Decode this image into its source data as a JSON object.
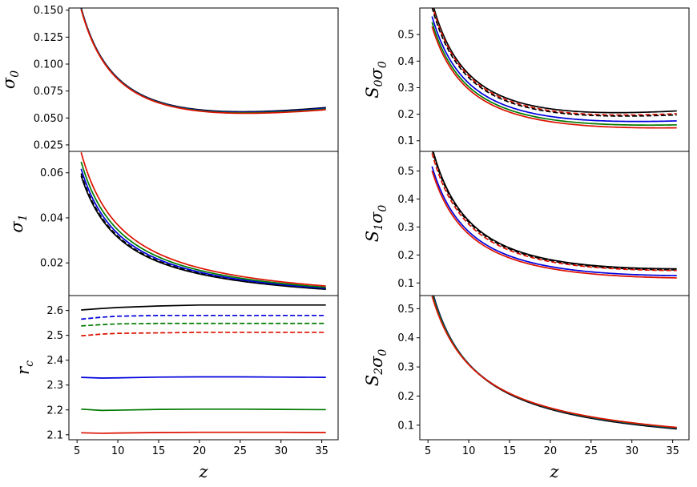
{
  "chart_data": [
    {
      "id": "sigma0",
      "type": "line",
      "ylabel": "σ0",
      "ylabel_main": "σ",
      "ylabel_sub": "0",
      "xlim": [
        4.0,
        37.0
      ],
      "ylim": [
        0.019,
        0.152
      ],
      "yticks": [
        0.025,
        0.05,
        0.075,
        0.1,
        0.125,
        0.15
      ],
      "ytick_labels": [
        "0.025",
        "0.050",
        "0.075",
        "0.100",
        "0.125",
        "0.150"
      ],
      "series": [
        {
          "name": "black",
          "color": "#000000",
          "dash": "solid",
          "a": 0.147,
          "e": 5.7,
          "p": 1.05,
          "b": 0.00128
        },
        {
          "name": "blue",
          "color": "#0000dd",
          "dash": "solid",
          "a": 0.1465,
          "e": 5.7,
          "p": 1.05,
          "b": 0.00126
        },
        {
          "name": "green",
          "color": "#007a00",
          "dash": "solid",
          "a": 0.146,
          "e": 5.7,
          "p": 1.05,
          "b": 0.00124
        },
        {
          "name": "red",
          "color": "#dd1100",
          "dash": "solid",
          "a": 0.1455,
          "e": 5.7,
          "p": 1.05,
          "b": 0.00122
        }
      ]
    },
    {
      "id": "sigma1",
      "type": "line",
      "ylabel": "σ1",
      "ylabel_main": "σ",
      "ylabel_sub": "1",
      "xlim": [
        4.0,
        37.0
      ],
      "ylim": [
        0.0055,
        0.0695
      ],
      "yticks": [
        0.02,
        0.04,
        0.06
      ],
      "ytick_labels": [
        "0.02",
        "0.04",
        "0.06"
      ],
      "series": [
        {
          "name": "black-dashed",
          "color": "#000000",
          "dash": "dashed",
          "a": 0.0575,
          "e": 5.7,
          "p": 1.05,
          "b": 0.0
        },
        {
          "name": "black",
          "color": "#000000",
          "dash": "solid",
          "a": 0.0565,
          "e": 5.7,
          "p": 1.05,
          "b": 0.0
        },
        {
          "name": "blue",
          "color": "#0000dd",
          "dash": "solid",
          "a": 0.0595,
          "e": 5.7,
          "p": 1.05,
          "b": 0.0
        },
        {
          "name": "green",
          "color": "#007a00",
          "dash": "solid",
          "a": 0.0625,
          "e": 5.7,
          "p": 1.05,
          "b": 0.0
        },
        {
          "name": "red",
          "color": "#dd1100",
          "dash": "solid",
          "a": 0.0665,
          "e": 5.7,
          "p": 1.05,
          "b": 0.0
        }
      ]
    },
    {
      "id": "rc",
      "type": "line",
      "ylabel": "rc",
      "ylabel_main": "r",
      "ylabel_sub": "c",
      "xlabel": "z",
      "xlim": [
        4.0,
        37.0
      ],
      "xticks": [
        5,
        10,
        15,
        20,
        25,
        30,
        35
      ],
      "xtick_labels": [
        "5",
        "10",
        "15",
        "20",
        "25",
        "30",
        "35"
      ],
      "ylim": [
        2.08,
        2.66
      ],
      "yticks": [
        2.1,
        2.2,
        2.3,
        2.4,
        2.5,
        2.6
      ],
      "ytick_labels": [
        "2.1",
        "2.2",
        "2.3",
        "2.4",
        "2.5",
        "2.6"
      ],
      "series": [
        {
          "name": "black",
          "color": "#000000",
          "dash": "solid",
          "x": [
            5.5,
            8,
            10,
            15,
            20,
            25,
            30,
            35.5
          ],
          "y": [
            2.602,
            2.608,
            2.612,
            2.618,
            2.622,
            2.622,
            2.622,
            2.622
          ]
        },
        {
          "name": "blue-dashed",
          "color": "#0000dd",
          "dash": "dashed",
          "x": [
            5.5,
            8,
            10,
            15,
            20,
            25,
            30,
            35.5
          ],
          "y": [
            2.565,
            2.573,
            2.577,
            2.58,
            2.58,
            2.58,
            2.58,
            2.58
          ]
        },
        {
          "name": "green-dashed",
          "color": "#007a00",
          "dash": "dashed",
          "x": [
            5.5,
            8,
            10,
            15,
            20,
            25,
            30,
            35.5
          ],
          "y": [
            2.538,
            2.543,
            2.546,
            2.548,
            2.548,
            2.548,
            2.548,
            2.548
          ]
        },
        {
          "name": "red-dashed",
          "color": "#dd1100",
          "dash": "dashed",
          "x": [
            5.5,
            8,
            10,
            15,
            20,
            25,
            30,
            35.5
          ],
          "y": [
            2.498,
            2.505,
            2.508,
            2.51,
            2.512,
            2.512,
            2.512,
            2.512
          ]
        },
        {
          "name": "blue",
          "color": "#0000dd",
          "dash": "solid",
          "x": [
            5.5,
            8,
            10,
            15,
            20,
            25,
            30,
            35.5
          ],
          "y": [
            2.331,
            2.328,
            2.329,
            2.332,
            2.333,
            2.333,
            2.332,
            2.331
          ]
        },
        {
          "name": "green",
          "color": "#007a00",
          "dash": "solid",
          "x": [
            5.5,
            8,
            10,
            15,
            20,
            25,
            30,
            35.5
          ],
          "y": [
            2.203,
            2.198,
            2.199,
            2.202,
            2.203,
            2.203,
            2.202,
            2.201
          ]
        },
        {
          "name": "red",
          "color": "#dd1100",
          "dash": "solid",
          "x": [
            5.5,
            8,
            10,
            15,
            20,
            25,
            30,
            35.5
          ],
          "y": [
            2.108,
            2.106,
            2.107,
            2.109,
            2.11,
            2.11,
            2.11,
            2.109
          ]
        }
      ]
    },
    {
      "id": "S0sigma0",
      "type": "line",
      "ylabel": "S0σ0",
      "ylabel_parts": [
        "S",
        "0",
        "σ",
        "0"
      ],
      "xlim": [
        4.0,
        37.0
      ],
      "ylim": [
        0.06,
        0.6
      ],
      "yticks": [
        0.1,
        0.2,
        0.3,
        0.4,
        0.5
      ],
      "ytick_labels": [
        "0.1",
        "0.2",
        "0.3",
        "0.4",
        "0.5"
      ],
      "series": [
        {
          "name": "black",
          "color": "#000000",
          "dash": "solid",
          "a": 0.572,
          "e": 6.0,
          "p": 1.05,
          "b": 0.0042
        },
        {
          "name": "red-dashed",
          "color": "#dd1100",
          "dash": "dashed",
          "a": 0.562,
          "e": 6.0,
          "p": 1.05,
          "b": 0.0039
        },
        {
          "name": "black-dashed",
          "color": "#000000",
          "dash": "dashed",
          "a": 0.552,
          "e": 6.0,
          "p": 1.05,
          "b": 0.0038
        },
        {
          "name": "blue",
          "color": "#0000dd",
          "dash": "solid",
          "a": 0.52,
          "e": 6.0,
          "p": 1.05,
          "b": 0.0032
        },
        {
          "name": "green",
          "color": "#007a00",
          "dash": "solid",
          "a": 0.5,
          "e": 6.0,
          "p": 1.05,
          "b": 0.0028
        },
        {
          "name": "red",
          "color": "#dd1100",
          "dash": "solid",
          "a": 0.485,
          "e": 6.0,
          "p": 1.05,
          "b": 0.0025
        }
      ]
    },
    {
      "id": "S1sigma0",
      "type": "line",
      "ylabel": "S1σ0",
      "ylabel_parts": [
        "S",
        "1",
        "σ",
        "0"
      ],
      "xlim": [
        4.0,
        37.0
      ],
      "ylim": [
        0.055,
        0.57
      ],
      "yticks": [
        0.1,
        0.2,
        0.3,
        0.4,
        0.5
      ],
      "ytick_labels": [
        "0.1",
        "0.2",
        "0.3",
        "0.4",
        "0.5"
      ],
      "series": [
        {
          "name": "black",
          "color": "#000000",
          "dash": "solid",
          "a": 0.535,
          "e": 6.0,
          "p": 1.05,
          "b": 0.0023
        },
        {
          "name": "black-dashed",
          "color": "#000000",
          "dash": "dashed",
          "a": 0.528,
          "e": 6.0,
          "p": 1.05,
          "b": 0.0022
        },
        {
          "name": "red-dashed",
          "color": "#dd1100",
          "dash": "dashed",
          "a": 0.515,
          "e": 6.0,
          "p": 1.05,
          "b": 0.0022
        },
        {
          "name": "blue",
          "color": "#0000dd",
          "dash": "solid",
          "a": 0.472,
          "e": 6.0,
          "p": 1.05,
          "b": 0.0018
        },
        {
          "name": "red",
          "color": "#dd1100",
          "dash": "solid",
          "a": 0.458,
          "e": 6.0,
          "p": 1.05,
          "b": 0.0016
        }
      ]
    },
    {
      "id": "S2sigma0",
      "type": "line",
      "ylabel": "S2σ0",
      "ylabel_parts": [
        "S",
        "2",
        "σ",
        "0"
      ],
      "xlabel": "z",
      "xlim": [
        4.0,
        37.0
      ],
      "xticks": [
        5,
        10,
        15,
        20,
        25,
        30,
        35
      ],
      "xtick_labels": [
        "5",
        "10",
        "15",
        "20",
        "25",
        "30",
        "35"
      ],
      "ylim": [
        0.05,
        0.545
      ],
      "yticks": [
        0.1,
        0.2,
        0.3,
        0.4,
        0.5
      ],
      "ytick_labels": [
        "0.1",
        "0.2",
        "0.3",
        "0.4",
        "0.5"
      ],
      "series": [
        {
          "name": "black",
          "color": "#000000",
          "dash": "solid",
          "a": 0.516,
          "e": 6.0,
          "p": 1.0,
          "b": 0.0
        },
        {
          "name": "blue",
          "color": "#0000dd",
          "dash": "solid",
          "a": 0.512,
          "e": 6.0,
          "p": 0.98,
          "b": 0.0
        },
        {
          "name": "green",
          "color": "#007a00",
          "dash": "solid",
          "a": 0.508,
          "e": 6.0,
          "p": 0.97,
          "b": 0.0
        },
        {
          "name": "red",
          "color": "#dd1100",
          "dash": "solid",
          "a": 0.5,
          "e": 6.0,
          "p": 0.95,
          "b": 0.0
        }
      ]
    }
  ]
}
